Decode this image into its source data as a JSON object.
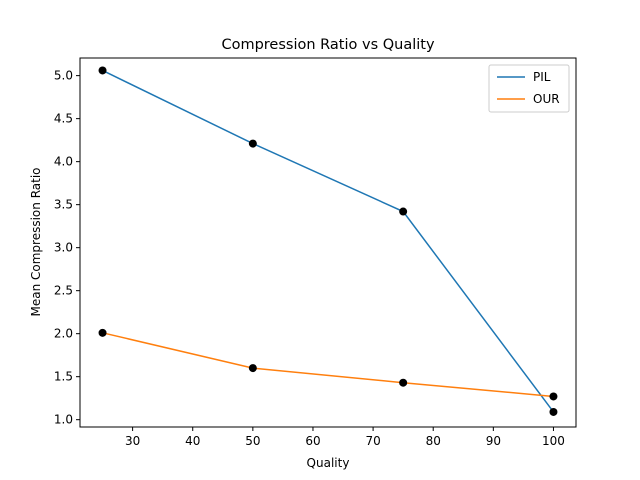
{
  "chart_data": {
    "type": "line",
    "title": "Compression Ratio vs Quality",
    "xlabel": "Quality",
    "ylabel": "Mean Compression Ratio",
    "x": [
      25,
      50,
      75,
      100
    ],
    "xlim": [
      21.25,
      103.75
    ],
    "ylim": [
      0.915,
      5.205
    ],
    "xticks": [
      "30",
      "40",
      "50",
      "60",
      "70",
      "80",
      "90",
      "100"
    ],
    "yticks": [
      "1.0",
      "1.5",
      "2.0",
      "2.5",
      "3.0",
      "3.5",
      "4.0",
      "4.5",
      "5.0"
    ],
    "grid": false,
    "legend_position": "top-right",
    "series": [
      {
        "name": "PIL",
        "values": [
          5.06,
          4.21,
          3.42,
          1.09
        ],
        "color": "#1f77b4"
      },
      {
        "name": "OUR",
        "values": [
          2.01,
          1.6,
          1.43,
          1.27
        ],
        "color": "#ff7f0e"
      }
    ],
    "marker_color": "#000000"
  }
}
